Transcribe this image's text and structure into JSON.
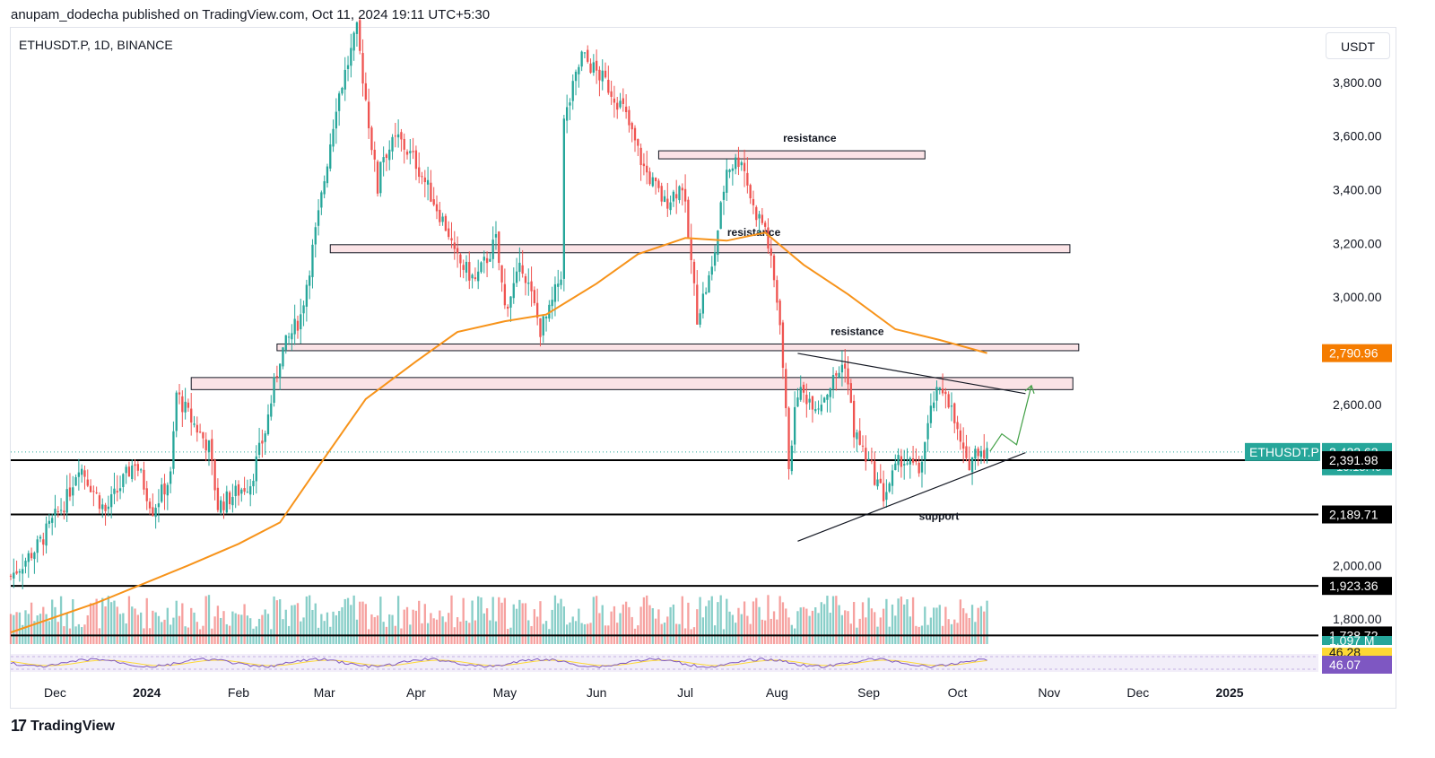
{
  "header": {
    "published_line": "anupam_dodecha published on TradingView.com, Oct 11, 2024 19:11 UTC+5:30",
    "symbol_line": "ETHUSDT.P, 1D, BINANCE",
    "currency_button": "USDT"
  },
  "footer": {
    "brand": "TradingView",
    "logo_glyph": "17"
  },
  "colors": {
    "up": "#26a69a",
    "down": "#ef5350",
    "ma": "#f7931a",
    "zone_fill": "#fbe3e6",
    "price_tag": "#26a69a",
    "ma_tag": "#f57c00",
    "level_tag": "#000000",
    "rsi": "#7e57c2"
  },
  "chart_data": {
    "type": "candlestick",
    "symbol": "ETHUSDT.P",
    "interval": "1D",
    "exchange": "BINANCE",
    "ylim": [
      1700,
      4000
    ],
    "y_ticks": [
      "3,800.00",
      "3,600.00",
      "3,400.00",
      "3,200.00",
      "3,000.00",
      "2,600.00",
      "2,000.00",
      "1,800.00"
    ],
    "y_tick_values": [
      3800,
      3600,
      3400,
      3200,
      3000,
      2600,
      2000,
      1800
    ],
    "x_start": "2023-11-16",
    "x_end": "2025-01-31",
    "x_ticks": [
      {
        "label": "Dec",
        "date": "2023-12-01"
      },
      {
        "label": "2024",
        "date": "2024-01-01",
        "bold": true
      },
      {
        "label": "Feb",
        "date": "2024-02-01"
      },
      {
        "label": "Mar",
        "date": "2024-03-01"
      },
      {
        "label": "Apr",
        "date": "2024-04-01"
      },
      {
        "label": "May",
        "date": "2024-05-01"
      },
      {
        "label": "Jun",
        "date": "2024-06-01"
      },
      {
        "label": "Jul",
        "date": "2024-07-01"
      },
      {
        "label": "Aug",
        "date": "2024-08-01"
      },
      {
        "label": "Sep",
        "date": "2024-09-01"
      },
      {
        "label": "Oct",
        "date": "2024-10-01"
      },
      {
        "label": "Nov",
        "date": "2024-11-01"
      },
      {
        "label": "Dec",
        "date": "2024-12-01"
      },
      {
        "label": "2025",
        "date": "2025-01-01",
        "bold": true
      }
    ],
    "price_path": [
      [
        "2023-11-16",
        1960
      ],
      [
        "2023-11-25",
        2070
      ],
      [
        "2023-12-05",
        2250
      ],
      [
        "2023-12-09",
        2380
      ],
      [
        "2023-12-18",
        2200
      ],
      [
        "2023-12-28",
        2390
      ],
      [
        "2024-01-03",
        2210
      ],
      [
        "2024-01-09",
        2330
      ],
      [
        "2024-01-11",
        2640
      ],
      [
        "2024-01-15",
        2560
      ],
      [
        "2024-01-22",
        2440
      ],
      [
        "2024-01-25",
        2220
      ],
      [
        "2024-02-05",
        2310
      ],
      [
        "2024-02-10",
        2500
      ],
      [
        "2024-02-15",
        2780
      ],
      [
        "2024-02-22",
        2930
      ],
      [
        "2024-02-28",
        3300
      ],
      [
        "2024-03-05",
        3720
      ],
      [
        "2024-03-12",
        3990
      ],
      [
        "2024-03-19",
        3400
      ],
      [
        "2024-03-20",
        3520
      ],
      [
        "2024-03-26",
        3590
      ],
      [
        "2024-04-01",
        3500
      ],
      [
        "2024-04-12",
        3240
      ],
      [
        "2024-04-14",
        3150
      ],
      [
        "2024-04-21",
        3060
      ],
      [
        "2024-04-28",
        3210
      ],
      [
        "2024-05-01",
        2960
      ],
      [
        "2024-05-07",
        3120
      ],
      [
        "2024-05-13",
        2880
      ],
      [
        "2024-05-16",
        2940
      ],
      [
        "2024-05-20",
        3090
      ],
      [
        "2024-05-21",
        3650
      ],
      [
        "2024-05-27",
        3900
      ],
      [
        "2024-06-04",
        3800
      ],
      [
        "2024-06-10",
        3700
      ],
      [
        "2024-06-17",
        3480
      ],
      [
        "2024-06-24",
        3350
      ],
      [
        "2024-06-30",
        3420
      ],
      [
        "2024-07-05",
        2930
      ],
      [
        "2024-07-10",
        3100
      ],
      [
        "2024-07-15",
        3480
      ],
      [
        "2024-07-20",
        3520
      ],
      [
        "2024-07-24",
        3330
      ],
      [
        "2024-07-28",
        3260
      ],
      [
        "2024-08-02",
        2920
      ],
      [
        "2024-08-05",
        2380
      ],
      [
        "2024-08-08",
        2650
      ],
      [
        "2024-08-15",
        2600
      ],
      [
        "2024-08-24",
        2760
      ],
      [
        "2024-08-27",
        2500
      ],
      [
        "2024-09-06",
        2260
      ],
      [
        "2024-09-12",
        2400
      ],
      [
        "2024-09-18",
        2350
      ],
      [
        "2024-09-23",
        2620
      ],
      [
        "2024-09-27",
        2660
      ],
      [
        "2024-10-01",
        2490
      ],
      [
        "2024-10-04",
        2370
      ],
      [
        "2024-10-08",
        2440
      ],
      [
        "2024-10-11",
        2422
      ]
    ],
    "ma_path": [
      [
        "2023-11-16",
        1750
      ],
      [
        "2023-12-15",
        1860
      ],
      [
        "2024-01-15",
        2000
      ],
      [
        "2024-02-01",
        2080
      ],
      [
        "2024-02-15",
        2160
      ],
      [
        "2024-03-01",
        2400
      ],
      [
        "2024-03-15",
        2620
      ],
      [
        "2024-04-01",
        2760
      ],
      [
        "2024-04-15",
        2870
      ],
      [
        "2024-05-01",
        2910
      ],
      [
        "2024-05-15",
        2935
      ],
      [
        "2024-06-01",
        3050
      ],
      [
        "2024-06-15",
        3160
      ],
      [
        "2024-07-01",
        3220
      ],
      [
        "2024-07-15",
        3210
      ],
      [
        "2024-07-28",
        3240
      ],
      [
        "2024-08-10",
        3120
      ],
      [
        "2024-08-25",
        3010
      ],
      [
        "2024-09-10",
        2880
      ],
      [
        "2024-09-25",
        2840
      ],
      [
        "2024-10-11",
        2791
      ]
    ],
    "ma_value": "2,790.96",
    "last_price": "2,422.62",
    "last_price_value": 2422.62,
    "countdown": "10:18:49",
    "symbol_tag": "ETHUSDT.P",
    "horizontal_levels": [
      {
        "label": "2,391.98",
        "value": 2391.98
      },
      {
        "label": "2,189.71",
        "value": 2189.71
      },
      {
        "label": "1,923.36",
        "value": 1923.36
      },
      {
        "label": "1,738.72",
        "value": 1738.72
      }
    ],
    "zones": [
      {
        "label": "resistance",
        "from": "2024-06-22",
        "to": "2024-09-20",
        "low": 3515,
        "high": 3545
      },
      {
        "label": "resistance",
        "from": "2024-03-03",
        "to": "2024-11-08",
        "low": 3165,
        "high": 3195
      },
      {
        "label": "resistance",
        "from": "2024-02-14",
        "to": "2024-11-11",
        "low": 2800,
        "high": 2825
      },
      {
        "label": "",
        "from": "2024-01-16",
        "to": "2024-11-09",
        "low": 2655,
        "high": 2700
      }
    ],
    "trendlines": [
      {
        "label": "",
        "from": [
          "2024-08-08",
          2790
        ],
        "to": [
          "2024-10-24",
          2640
        ]
      },
      {
        "label": "support",
        "from": [
          "2024-08-08",
          2090
        ],
        "to": [
          "2024-10-24",
          2420
        ]
      }
    ],
    "projection": [
      [
        "2024-10-12",
        2425
      ],
      [
        "2024-10-16",
        2490
      ],
      [
        "2024-10-21",
        2450
      ],
      [
        "2024-10-26",
        2670
      ]
    ],
    "volume_tag": "1.097 M",
    "rsi_tags": [
      "46.28",
      "46.07"
    ]
  }
}
